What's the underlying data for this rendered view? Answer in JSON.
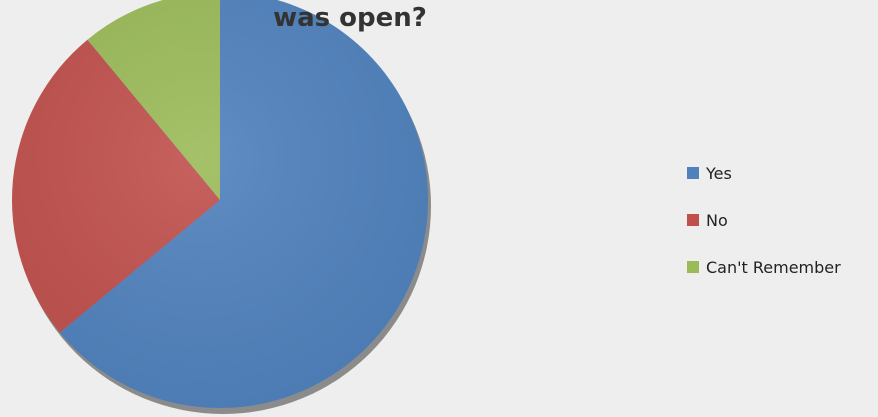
{
  "chart_data": {
    "type": "pie",
    "title": "was open?",
    "categories": [
      "Yes",
      "No",
      "Can't Remember"
    ],
    "values": [
      64,
      25,
      11
    ],
    "colors": [
      "#4f81bd",
      "#c0504d",
      "#9bbb59"
    ],
    "legend_position": "right",
    "start_angle_deg": 0,
    "direction": "clockwise"
  }
}
